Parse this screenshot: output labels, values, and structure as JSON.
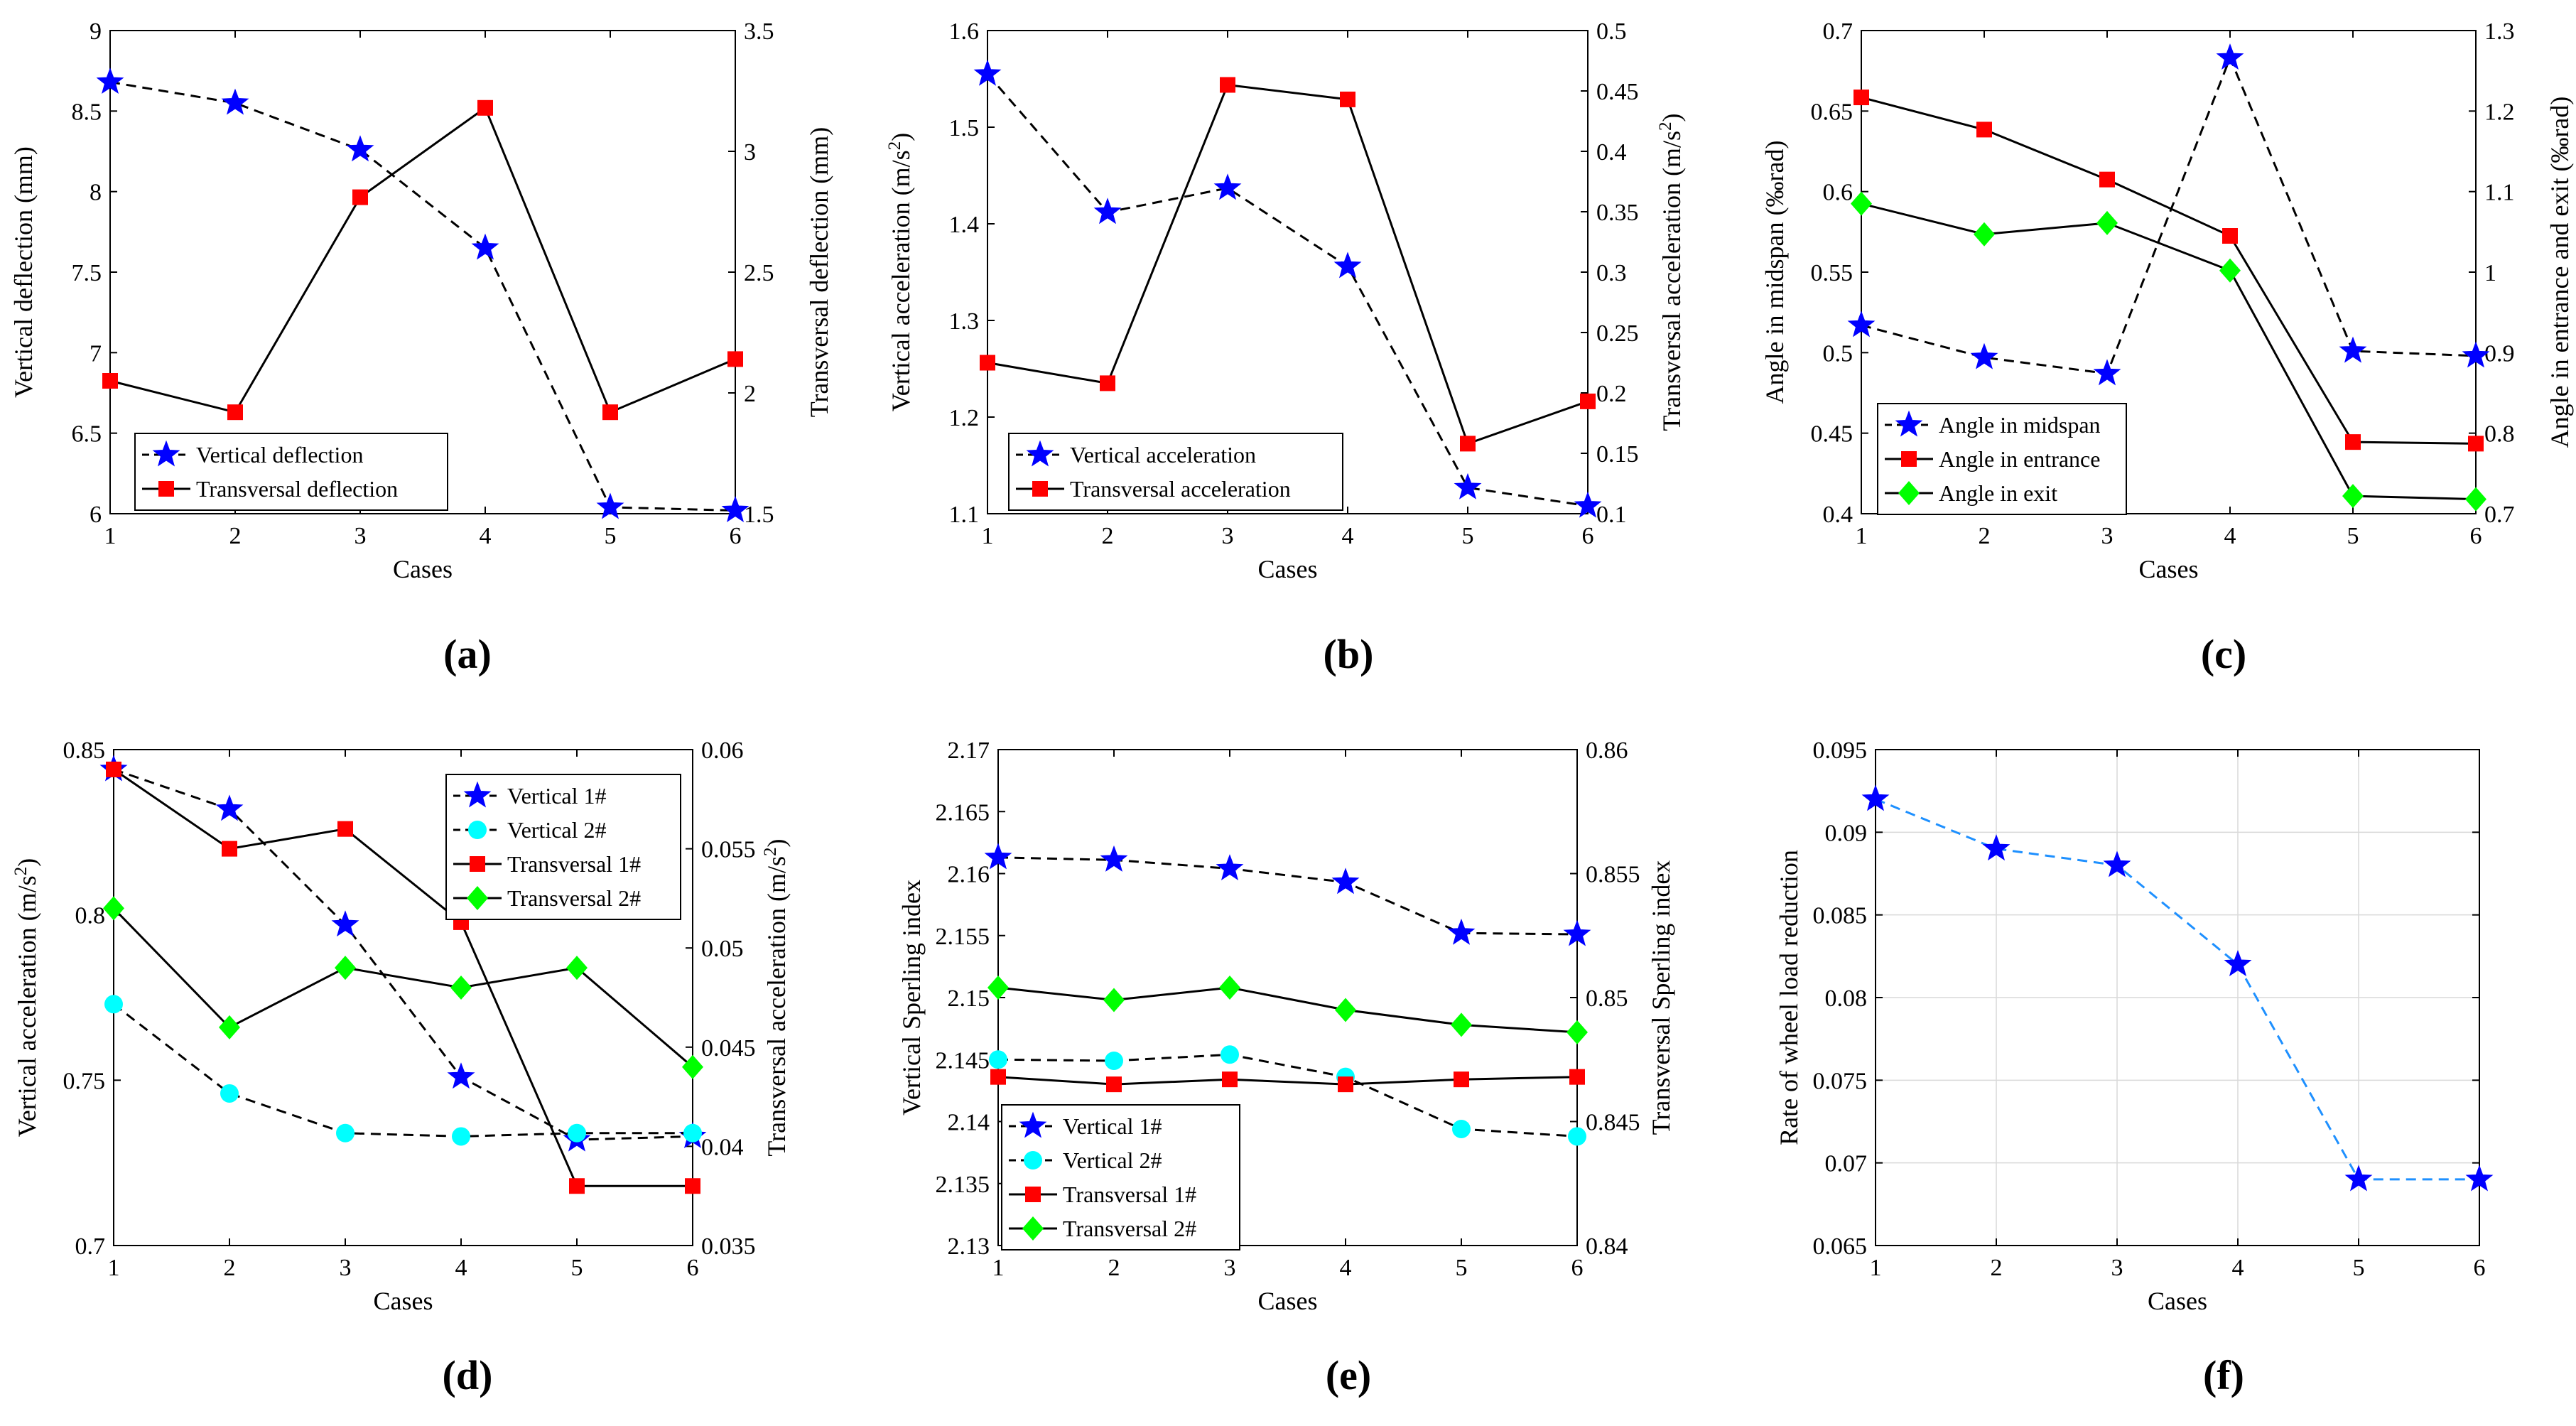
{
  "chart_data": [
    {
      "id": "a",
      "type": "line",
      "panel_label": "(a)",
      "xlabel": "Cases",
      "ylabel_left": "Vertical deflection (mm)",
      "ylabel_right": "Transversal deflection (mm)",
      "x": [
        1,
        2,
        3,
        4,
        5,
        6
      ],
      "xlim": [
        1,
        6
      ],
      "yleft_lim": [
        6,
        9
      ],
      "yleft_ticks": [
        "6",
        "6.5",
        "7",
        "7.5",
        "8",
        "8.5",
        "9"
      ],
      "yright_lim": [
        1.5,
        3.5
      ],
      "yright_ticks": [
        "1.5",
        "2",
        "2.5",
        "3",
        "3.5"
      ],
      "legend_position": "bottom-left",
      "series": [
        {
          "name": "Vertical deflection",
          "axis": "left",
          "line": "dashed",
          "marker": "star",
          "color": "#0000ff",
          "values": [
            8.68,
            8.55,
            8.26,
            7.65,
            6.04,
            6.02
          ]
        },
        {
          "name": "Transversal deflection",
          "axis": "right",
          "line": "solid",
          "marker": "square",
          "color": "#ff0000",
          "values": [
            2.05,
            1.92,
            2.81,
            3.18,
            1.92,
            2.14
          ]
        }
      ]
    },
    {
      "id": "b",
      "type": "line",
      "panel_label": "(b)",
      "xlabel": "Cases",
      "ylabel_left": "Vertical acceleration (m/s²)",
      "ylabel_right": "Transversal acceleration (m/s²)",
      "x": [
        1,
        2,
        3,
        4,
        5,
        6
      ],
      "xlim": [
        1,
        6
      ],
      "yleft_lim": [
        1.1,
        1.6
      ],
      "yleft_ticks": [
        "1.1",
        "1.2",
        "1.3",
        "1.4",
        "1.5",
        "1.6"
      ],
      "yright_lim": [
        0.1,
        0.5
      ],
      "yright_ticks": [
        "0.1",
        "0.15",
        "0.2",
        "0.25",
        "0.3",
        "0.35",
        "0.4",
        "0.45",
        "0.5"
      ],
      "legend_position": "bottom-left",
      "series": [
        {
          "name": "Vertical acceleration",
          "axis": "left",
          "line": "dashed",
          "marker": "star",
          "color": "#0000ff",
          "values": [
            1.555,
            1.412,
            1.437,
            1.356,
            1.127,
            1.108
          ]
        },
        {
          "name": "Transversal acceleration",
          "axis": "right",
          "line": "solid",
          "marker": "square",
          "color": "#ff0000",
          "values": [
            0.225,
            0.208,
            0.455,
            0.443,
            0.158,
            0.193
          ]
        }
      ]
    },
    {
      "id": "c",
      "type": "line",
      "panel_label": "(c)",
      "xlabel": "Cases",
      "ylabel_left": "Angle in midspan (‰rad)",
      "ylabel_right": "Angle in entrance and exit (‰rad)",
      "x": [
        1,
        2,
        3,
        4,
        5,
        6
      ],
      "xlim": [
        1,
        6
      ],
      "yleft_lim": [
        0.4,
        0.7
      ],
      "yleft_ticks": [
        "0.4",
        "0.45",
        "0.5",
        "0.55",
        "0.6",
        "0.65",
        "0.7"
      ],
      "yright_lim": [
        0.7,
        1.3
      ],
      "yright_ticks": [
        "0.7",
        "0.8",
        "0.9",
        "1",
        "1.1",
        "1.2",
        "1.3"
      ],
      "legend_position": "bottom-left",
      "series": [
        {
          "name": "Angle in midspan",
          "axis": "left",
          "line": "dashed",
          "marker": "star",
          "color": "#0000ff",
          "values": [
            0.517,
            0.497,
            0.487,
            0.683,
            0.501,
            0.498
          ]
        },
        {
          "name": "Angle in entrance",
          "axis": "right",
          "line": "solid",
          "marker": "square",
          "color": "#ff0000",
          "values": [
            1.217,
            1.177,
            1.115,
            1.045,
            0.789,
            0.787
          ]
        },
        {
          "name": "Angle in exit",
          "axis": "right",
          "line": "solid",
          "marker": "diamond",
          "color": "#00ff00",
          "values": [
            1.085,
            1.047,
            1.061,
            1.002,
            0.722,
            0.718
          ]
        }
      ]
    },
    {
      "id": "d",
      "type": "line",
      "panel_label": "(d)",
      "xlabel": "Cases",
      "ylabel_left": "Vertical acceleration (m/s²)",
      "ylabel_right": "Transversal acceleration (m/s²)",
      "x": [
        1,
        2,
        3,
        4,
        5,
        6
      ],
      "xlim": [
        1,
        6
      ],
      "yleft_lim": [
        0.7,
        0.85
      ],
      "yleft_ticks": [
        "0.7",
        "0.75",
        "0.8",
        "0.85"
      ],
      "yright_lim": [
        0.035,
        0.06
      ],
      "yright_ticks": [
        "0.035",
        "0.04",
        "0.045",
        "0.05",
        "0.055",
        "0.06"
      ],
      "legend_position": "top-right",
      "series": [
        {
          "name": "Vertical 1#",
          "axis": "left",
          "line": "dashed",
          "marker": "star",
          "color": "#0000ff",
          "values": [
            0.844,
            0.832,
            0.797,
            0.751,
            0.732,
            0.733
          ]
        },
        {
          "name": "Vertical 2#",
          "axis": "left",
          "line": "dashed",
          "marker": "circle",
          "color": "#00ffff",
          "values": [
            0.773,
            0.746,
            0.734,
            0.733,
            0.734,
            0.734
          ]
        },
        {
          "name": "Transversal 1#",
          "axis": "right",
          "line": "solid",
          "marker": "square",
          "color": "#ff0000",
          "values": [
            0.059,
            0.055,
            0.056,
            0.0513,
            0.038,
            0.038
          ]
        },
        {
          "name": "Transversal 2#",
          "axis": "right",
          "line": "solid",
          "marker": "diamond",
          "color": "#00ff00",
          "values": [
            0.052,
            0.046,
            0.049,
            0.048,
            0.049,
            0.044
          ]
        }
      ]
    },
    {
      "id": "e",
      "type": "line",
      "panel_label": "(e)",
      "xlabel": "Cases",
      "ylabel_left": "Vertical Sperling index",
      "ylabel_right": "Transversal Sperling index",
      "x": [
        1,
        2,
        3,
        4,
        5,
        6
      ],
      "xlim": [
        1,
        6
      ],
      "yleft_lim": [
        2.13,
        2.17
      ],
      "yleft_ticks": [
        "2.13",
        "2.135",
        "2.14",
        "2.145",
        "2.15",
        "2.155",
        "2.16",
        "2.165",
        "2.17"
      ],
      "yright_lim": [
        0.84,
        0.86
      ],
      "yright_ticks": [
        "0.84",
        "0.845",
        "0.85",
        "0.855",
        "0.86"
      ],
      "legend_position": "bottom-left",
      "series": [
        {
          "name": "Vertical 1#",
          "axis": "left",
          "line": "dashed",
          "marker": "star",
          "color": "#0000ff",
          "values": [
            2.1613,
            2.1611,
            2.1604,
            2.1593,
            2.1552,
            2.1551
          ]
        },
        {
          "name": "Vertical 2#",
          "axis": "left",
          "line": "dashed",
          "marker": "circle",
          "color": "#00ffff",
          "values": [
            2.145,
            2.1449,
            2.1454,
            2.1436,
            2.1394,
            2.1388
          ]
        },
        {
          "name": "Transversal 1#",
          "axis": "right",
          "line": "solid",
          "marker": "square",
          "color": "#ff0000",
          "values": [
            0.8468,
            0.8465,
            0.8467,
            0.8465,
            0.8467,
            0.8468
          ]
        },
        {
          "name": "Transversal 2#",
          "axis": "right",
          "line": "solid",
          "marker": "diamond",
          "color": "#00ff00",
          "values": [
            0.8504,
            0.8499,
            0.8504,
            0.8495,
            0.8489,
            0.8486
          ]
        }
      ]
    },
    {
      "id": "f",
      "type": "line",
      "panel_label": "(f)",
      "xlabel": "Cases",
      "ylabel_left": "Rate of wheel load reduction",
      "ylabel_right": "",
      "x": [
        1,
        2,
        3,
        4,
        5,
        6
      ],
      "xlim": [
        1,
        6
      ],
      "yleft_lim": [
        0.065,
        0.095
      ],
      "yleft_ticks": [
        "0.065",
        "0.07",
        "0.075",
        "0.08",
        "0.085",
        "0.09",
        "0.095"
      ],
      "yright_lim": null,
      "yright_ticks": [],
      "legend_position": "none",
      "grid": true,
      "series": [
        {
          "axis": "left",
          "line": "dashed",
          "marker": "star",
          "color": "#0000ff",
          "line_color": "#1e90ff",
          "values": [
            0.092,
            0.089,
            0.088,
            0.082,
            0.069,
            0.069
          ]
        }
      ]
    }
  ]
}
